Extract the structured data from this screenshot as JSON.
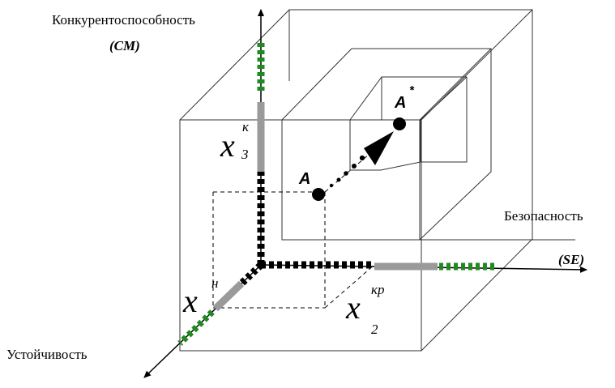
{
  "axes": {
    "y_label": "Конкурентоспособность",
    "y_symbol": "(CM)",
    "x_label": "Безопасность",
    "x_symbol": "(SE)",
    "z_label": "Устойчивость"
  },
  "variables": {
    "x3_base": "x",
    "x3_sup": "к",
    "x3_sub": "3",
    "x2_base": "x",
    "x2_sup": "кр",
    "x2_sub": "2",
    "x1_base": "x",
    "x1_sup": "н"
  },
  "points": {
    "a_label": "A",
    "a_star_label": "A",
    "a_star_sup": "*"
  },
  "colors": {
    "green": "#1f8a1f",
    "gray": "#9a9a9a",
    "black": "#000000"
  }
}
